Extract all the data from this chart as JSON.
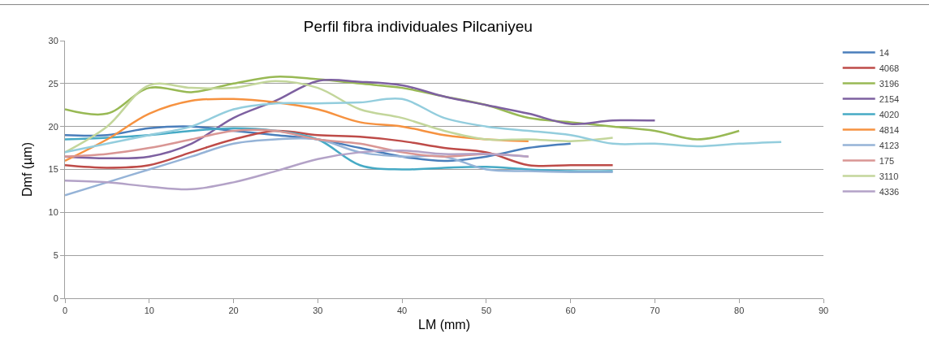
{
  "chart_data": {
    "type": "line",
    "title": "Perfil fibra individuales Pilcaniyeu",
    "xlabel": "LM (mm)",
    "ylabel": "Dmf (µm)",
    "xlim": [
      0,
      90
    ],
    "xticks": [
      0,
      10,
      20,
      30,
      40,
      50,
      60,
      70,
      80,
      90
    ],
    "ylim": [
      0,
      30
    ],
    "yticks": [
      0,
      5,
      10,
      15,
      20,
      25,
      30
    ],
    "grid": "y",
    "legend": "right",
    "marker": "none",
    "line_style": "solid",
    "x": [
      0,
      5,
      10,
      15,
      20,
      25,
      30,
      35,
      40,
      45,
      50,
      55,
      60,
      65,
      70,
      75,
      80,
      85
    ],
    "series": [
      {
        "name": "14",
        "color": "#4a7ebb",
        "values": [
          19,
          19,
          19.8,
          20,
          19.5,
          19,
          18.5,
          17.5,
          16.5,
          16,
          16.5,
          17.5,
          18,
          null,
          null,
          null,
          null,
          null
        ]
      },
      {
        "name": "4068",
        "color": "#be4b48",
        "values": [
          15.5,
          15.2,
          15.5,
          17,
          18.5,
          19.5,
          19,
          18.8,
          18.3,
          17.5,
          17,
          15.5,
          15.5,
          15.5,
          null,
          null,
          null,
          null
        ]
      },
      {
        "name": "3196",
        "color": "#98b954",
        "values": [
          22,
          21.5,
          24.5,
          24,
          25,
          25.8,
          25.5,
          25,
          24.5,
          23.5,
          22.5,
          21,
          20.5,
          20,
          19.5,
          18.5,
          19.5,
          null
        ]
      },
      {
        "name": "2154",
        "color": "#7d60a0",
        "values": [
          16.5,
          16.3,
          16.5,
          18,
          21,
          23,
          25.3,
          25.2,
          24.8,
          23.5,
          22.5,
          21.5,
          20.3,
          20.7,
          20.7,
          null,
          null,
          null
        ]
      },
      {
        "name": "4020",
        "color": "#46aac5",
        "values": [
          18.5,
          18.7,
          19,
          19.5,
          19.8,
          19.5,
          18.5,
          15.5,
          15,
          15.2,
          15.3,
          15,
          14.8,
          14.8,
          null,
          null,
          null,
          null
        ]
      },
      {
        "name": "4814",
        "color": "#f69240",
        "values": [
          16,
          18.5,
          21.5,
          23,
          23.2,
          22.8,
          22,
          20.5,
          20,
          19,
          18.5,
          18.3,
          null,
          null,
          null,
          null,
          null,
          null
        ]
      },
      {
        "name": "4123",
        "color": "#95b3d7",
        "values": [
          12,
          13.5,
          15,
          16.5,
          18,
          18.5,
          18.5,
          17,
          16.5,
          16.5,
          15,
          14.8,
          14.7,
          14.7,
          null,
          null,
          null,
          null
        ]
      },
      {
        "name": "175",
        "color": "#d99694",
        "values": [
          16.5,
          16.8,
          17.5,
          18.5,
          19.5,
          19.5,
          18.5,
          18,
          17,
          16.5,
          16.8,
          16.5,
          null,
          null,
          null,
          null,
          null,
          null
        ]
      },
      {
        "name": "3110",
        "color": "#c3d69b",
        "values": [
          17,
          20,
          24.8,
          24.5,
          24.5,
          25.3,
          24.5,
          22,
          21,
          19.5,
          18.5,
          18.5,
          18.3,
          18.7,
          null,
          null,
          null,
          null
        ]
      },
      {
        "name": "4336",
        "color": "#b3a2c7",
        "values": [
          13.7,
          13.5,
          13,
          12.7,
          13.5,
          14.8,
          16.2,
          17,
          17.2,
          16.8,
          16.8,
          16.5,
          null,
          null,
          null,
          null,
          null,
          null
        ]
      },
      {
        "color": "#93cddd",
        "values": [
          17,
          18,
          19,
          20,
          22,
          22.7,
          22.7,
          22.8,
          23.2,
          21,
          20,
          19.5,
          19,
          18,
          18,
          17.7,
          18,
          18.2
        ]
      }
    ]
  }
}
